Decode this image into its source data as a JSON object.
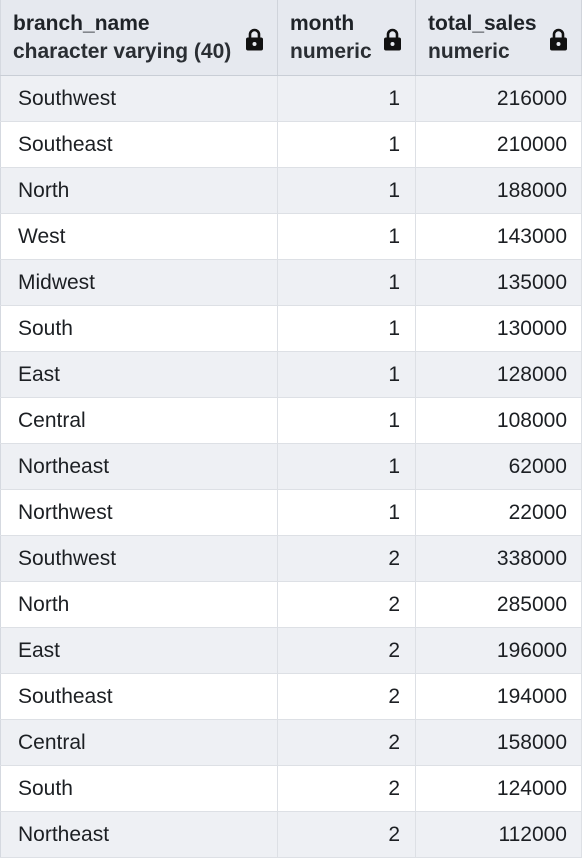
{
  "columns": [
    {
      "name": "branch_name",
      "type": "character varying (40)"
    },
    {
      "name": "month",
      "type": "numeric"
    },
    {
      "name": "total_sales",
      "type": "numeric"
    }
  ],
  "rows": [
    {
      "branch_name": "Southwest",
      "month": "1",
      "total_sales": "216000"
    },
    {
      "branch_name": "Southeast",
      "month": "1",
      "total_sales": "210000"
    },
    {
      "branch_name": "North",
      "month": "1",
      "total_sales": "188000"
    },
    {
      "branch_name": "West",
      "month": "1",
      "total_sales": "143000"
    },
    {
      "branch_name": "Midwest",
      "month": "1",
      "total_sales": "135000"
    },
    {
      "branch_name": "South",
      "month": "1",
      "total_sales": "130000"
    },
    {
      "branch_name": "East",
      "month": "1",
      "total_sales": "128000"
    },
    {
      "branch_name": "Central",
      "month": "1",
      "total_sales": "108000"
    },
    {
      "branch_name": "Northeast",
      "month": "1",
      "total_sales": "62000"
    },
    {
      "branch_name": "Northwest",
      "month": "1",
      "total_sales": "22000"
    },
    {
      "branch_name": "Southwest",
      "month": "2",
      "total_sales": "338000"
    },
    {
      "branch_name": "North",
      "month": "2",
      "total_sales": "285000"
    },
    {
      "branch_name": "East",
      "month": "2",
      "total_sales": "196000"
    },
    {
      "branch_name": "Southeast",
      "month": "2",
      "total_sales": "194000"
    },
    {
      "branch_name": "Central",
      "month": "2",
      "total_sales": "158000"
    },
    {
      "branch_name": "South",
      "month": "2",
      "total_sales": "124000"
    },
    {
      "branch_name": "Northeast",
      "month": "2",
      "total_sales": "112000"
    }
  ],
  "icons": {
    "column_header_icon": "lock-icon"
  },
  "colors": {
    "header_bg": "#e6e9ef",
    "row_alt_bg": "#eef0f4",
    "row_bg": "#ffffff",
    "grid_line": "#dde0e5"
  }
}
